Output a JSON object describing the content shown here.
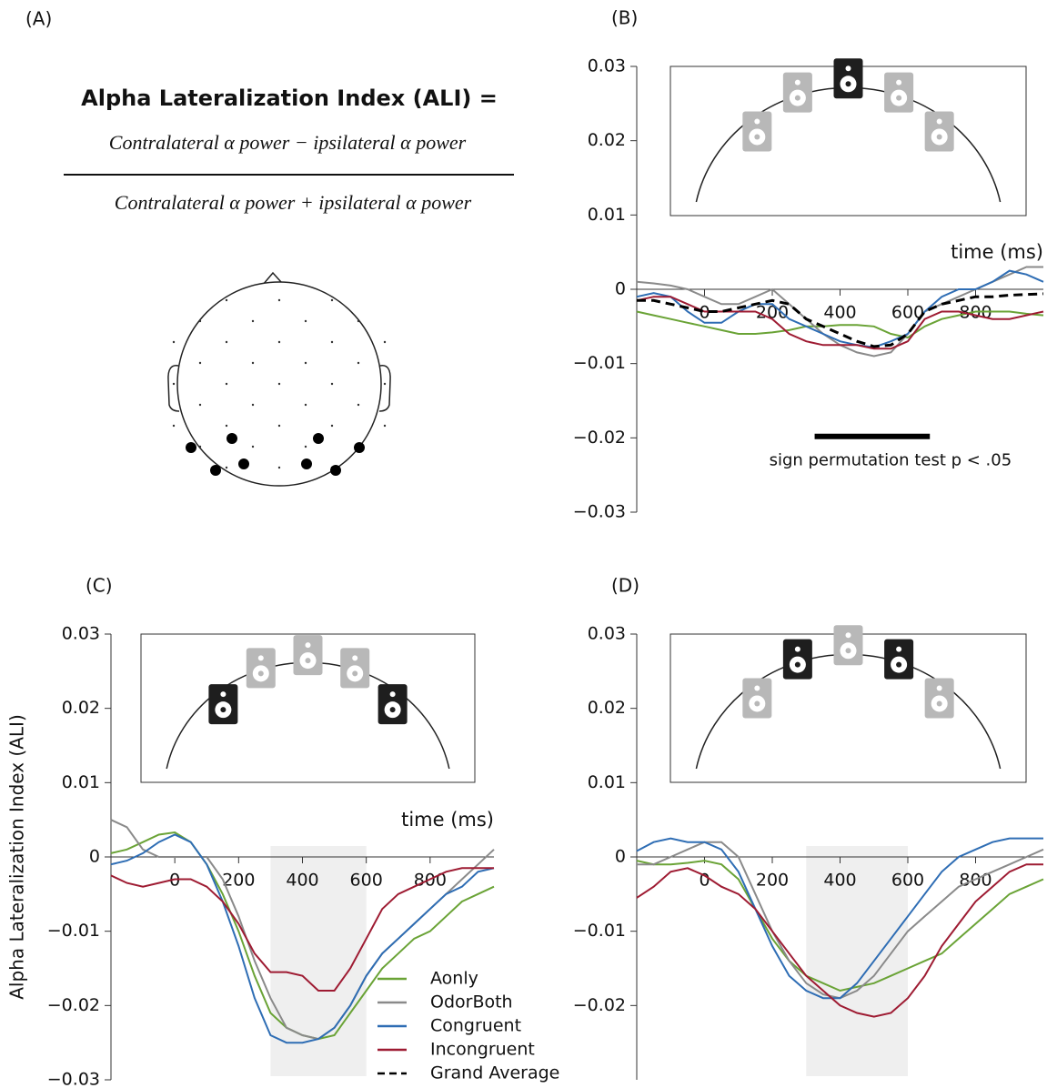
{
  "panel_a": {
    "label": "(A)",
    "title": "Alpha Lateralization Index (ALI) =",
    "numerator": "Contralateral α power − ipsilateral α power",
    "denominator": "Contralateral α power + ipsilateral α power"
  },
  "chart_data": [
    {
      "type": "line",
      "label": "(B)",
      "x_label": "time (ms)",
      "x": [
        -200,
        -150,
        -100,
        -50,
        0,
        50,
        100,
        150,
        200,
        250,
        300,
        350,
        400,
        450,
        500,
        550,
        600,
        650,
        700,
        750,
        800,
        850,
        900,
        950,
        1000
      ],
      "xlim": [
        -200,
        1000
      ],
      "xticks": [
        0,
        200,
        400,
        600,
        800
      ],
      "ylim": [
        -0.03,
        0.03
      ],
      "yticks": [
        {
          "value": -0.03,
          "label": "−0.03"
        },
        {
          "value": -0.02,
          "label": "−0.02"
        },
        {
          "value": -0.01,
          "label": "−0.01"
        },
        0,
        0.01,
        0.02,
        0.03
      ],
      "speakers": [
        false,
        false,
        true,
        false,
        false
      ],
      "significance": {
        "range": [
          325,
          665
        ],
        "label": "sign permutation test p < .05"
      },
      "series": [
        {
          "color": "#6aa336",
          "values": [
            -0.003,
            -0.0035,
            -0.004,
            -0.0045,
            -0.005,
            -0.0055,
            -0.006,
            -0.006,
            -0.0058,
            -0.0055,
            -0.005,
            -0.005,
            -0.0048,
            -0.0048,
            -0.005,
            -0.006,
            -0.0065,
            -0.005,
            -0.004,
            -0.0035,
            -0.003,
            -0.003,
            -0.003,
            -0.0033,
            -0.0035
          ]
        },
        {
          "color": "#8a8a8a",
          "values": [
            0.001,
            0.0008,
            0.0005,
            0,
            -0.001,
            -0.002,
            -0.002,
            -0.001,
            0,
            -0.002,
            -0.004,
            -0.006,
            -0.0075,
            -0.0085,
            -0.009,
            -0.0085,
            -0.006,
            -0.003,
            -0.002,
            -0.001,
            0,
            0.001,
            0.002,
            0.003,
            0.003
          ]
        },
        {
          "color": "#2e6db4",
          "values": [
            -0.001,
            -0.0005,
            -0.001,
            -0.003,
            -0.0045,
            -0.0045,
            -0.003,
            -0.002,
            -0.002,
            -0.004,
            -0.005,
            -0.006,
            -0.007,
            -0.0075,
            -0.0078,
            -0.007,
            -0.006,
            -0.003,
            -0.001,
            0,
            0,
            0.001,
            0.0025,
            0.002,
            0.001
          ]
        },
        {
          "color": "#9e1b32",
          "values": [
            -0.0015,
            -0.001,
            -0.001,
            -0.002,
            -0.003,
            -0.003,
            -0.003,
            -0.003,
            -0.004,
            -0.006,
            -0.007,
            -0.0075,
            -0.0075,
            -0.0075,
            -0.008,
            -0.008,
            -0.007,
            -0.004,
            -0.003,
            -0.003,
            -0.0035,
            -0.004,
            -0.004,
            -0.0035,
            -0.003
          ]
        },
        {
          "color": "#000000",
          "dashed": true,
          "values": [
            -0.0015,
            -0.0015,
            -0.002,
            -0.0025,
            -0.003,
            -0.003,
            -0.0025,
            -0.002,
            -0.0015,
            -0.002,
            -0.004,
            -0.005,
            -0.006,
            -0.007,
            -0.0077,
            -0.0075,
            -0.006,
            -0.003,
            -0.002,
            -0.0015,
            -0.001,
            -0.001,
            -0.0008,
            -0.0007,
            -0.0006
          ]
        }
      ]
    },
    {
      "type": "line",
      "label": "(C)",
      "x_label": "time (ms)",
      "y_label": "Alpha Lateralization Index (ALI)",
      "x": [
        -200,
        -150,
        -100,
        -50,
        0,
        50,
        100,
        150,
        200,
        250,
        300,
        350,
        400,
        450,
        500,
        550,
        600,
        650,
        700,
        750,
        800,
        850,
        900,
        950,
        1000
      ],
      "xlim": [
        -200,
        1000
      ],
      "xticks": [
        0,
        200,
        400,
        600,
        800
      ],
      "ylim": [
        -0.03,
        0.03
      ],
      "yticks": [
        {
          "value": -0.03,
          "label": "−0.03"
        },
        {
          "value": -0.02,
          "label": "−0.02"
        },
        {
          "value": -0.01,
          "label": "−0.01"
        },
        0,
        0.01,
        0.02,
        0.03
      ],
      "speakers": [
        true,
        false,
        false,
        false,
        true
      ],
      "highlight": [
        300,
        600
      ],
      "series": [
        {
          "color": "#6aa336",
          "values": [
            0.0005,
            0.001,
            0.002,
            0.003,
            0.0033,
            0.002,
            -0.001,
            -0.005,
            -0.01,
            -0.016,
            -0.021,
            -0.023,
            -0.024,
            -0.0245,
            -0.024,
            -0.021,
            -0.018,
            -0.015,
            -0.013,
            -0.011,
            -0.01,
            -0.008,
            -0.006,
            -0.005,
            -0.004
          ]
        },
        {
          "color": "#8a8a8a",
          "values": [
            0.005,
            0.004,
            0.001,
            0,
            0,
            0,
            0,
            -0.003,
            -0.008,
            -0.014,
            -0.019,
            -0.023,
            -0.024,
            -0.0245,
            -0.023,
            -0.02,
            -0.016,
            -0.013,
            -0.011,
            -0.009,
            -0.007,
            -0.005,
            -0.003,
            -0.001,
            0.001
          ]
        },
        {
          "color": "#2e6db4",
          "values": [
            -0.001,
            -0.0005,
            0.0005,
            0.002,
            0.003,
            0.002,
            -0.001,
            -0.006,
            -0.012,
            -0.019,
            -0.024,
            -0.025,
            -0.025,
            -0.0245,
            -0.023,
            -0.02,
            -0.016,
            -0.013,
            -0.011,
            -0.009,
            -0.007,
            -0.005,
            -0.004,
            -0.002,
            -0.0015
          ]
        },
        {
          "color": "#9e1b32",
          "values": [
            -0.0025,
            -0.0035,
            -0.004,
            -0.0035,
            -0.003,
            -0.003,
            -0.004,
            -0.006,
            -0.009,
            -0.013,
            -0.0155,
            -0.0155,
            -0.016,
            -0.018,
            -0.018,
            -0.015,
            -0.011,
            -0.007,
            -0.005,
            -0.004,
            -0.003,
            -0.002,
            -0.0015,
            -0.0015,
            -0.0015
          ]
        }
      ],
      "legend": [
        {
          "name": "Aonly",
          "color": "#6aa336"
        },
        {
          "name": "OdorBoth",
          "color": "#8a8a8a"
        },
        {
          "name": "Congruent",
          "color": "#2e6db4"
        },
        {
          "name": "Incongruent",
          "color": "#9e1b32"
        },
        {
          "name": "Grand Average",
          "color": "#000000",
          "dashed": true
        }
      ]
    },
    {
      "type": "line",
      "label": "(D)",
      "x_label": null,
      "x": [
        -200,
        -150,
        -100,
        -50,
        0,
        50,
        100,
        150,
        200,
        250,
        300,
        350,
        400,
        450,
        500,
        550,
        600,
        650,
        700,
        750,
        800,
        850,
        900,
        950,
        1000
      ],
      "xlim": [
        -200,
        1000
      ],
      "xticks": [
        0,
        200,
        400,
        600,
        800
      ],
      "ylim": [
        -0.03,
        0.03
      ],
      "yticks": [
        {
          "value": -0.02,
          "label": "−0.02"
        },
        {
          "value": -0.01,
          "label": "−0.01"
        },
        0,
        0.01,
        0.02,
        0.03
      ],
      "speakers": [
        false,
        true,
        false,
        true,
        false
      ],
      "highlight": [
        300,
        600
      ],
      "series": [
        {
          "color": "#6aa336",
          "values": [
            -0.0005,
            -0.001,
            -0.001,
            -0.0008,
            -0.0005,
            -0.001,
            -0.003,
            -0.007,
            -0.011,
            -0.014,
            -0.016,
            -0.017,
            -0.018,
            -0.0175,
            -0.017,
            -0.016,
            -0.015,
            -0.014,
            -0.013,
            -0.011,
            -0.009,
            -0.007,
            -0.005,
            -0.004,
            -0.003
          ]
        },
        {
          "color": "#8a8a8a",
          "values": [
            -0.001,
            -0.001,
            0,
            0.001,
            0.002,
            0.002,
            0,
            -0.005,
            -0.01,
            -0.014,
            -0.017,
            -0.0185,
            -0.019,
            -0.018,
            -0.016,
            -0.013,
            -0.01,
            -0.008,
            -0.006,
            -0.004,
            -0.003,
            -0.002,
            -0.001,
            0,
            0.001
          ]
        },
        {
          "color": "#2e6db4",
          "values": [
            0.0008,
            0.002,
            0.0025,
            0.002,
            0.002,
            0.001,
            -0.002,
            -0.007,
            -0.012,
            -0.016,
            -0.018,
            -0.019,
            -0.019,
            -0.017,
            -0.014,
            -0.011,
            -0.008,
            -0.005,
            -0.002,
            0,
            0.001,
            0.002,
            0.0025,
            0.0025,
            0.0025
          ]
        },
        {
          "color": "#9e1b32",
          "values": [
            -0.0055,
            -0.004,
            -0.002,
            -0.0015,
            -0.0025,
            -0.004,
            -0.005,
            -0.007,
            -0.01,
            -0.013,
            -0.016,
            -0.018,
            -0.02,
            -0.021,
            -0.0215,
            -0.021,
            -0.019,
            -0.016,
            -0.012,
            -0.009,
            -0.006,
            -0.004,
            -0.002,
            -0.001,
            -0.001
          ]
        }
      ]
    }
  ]
}
